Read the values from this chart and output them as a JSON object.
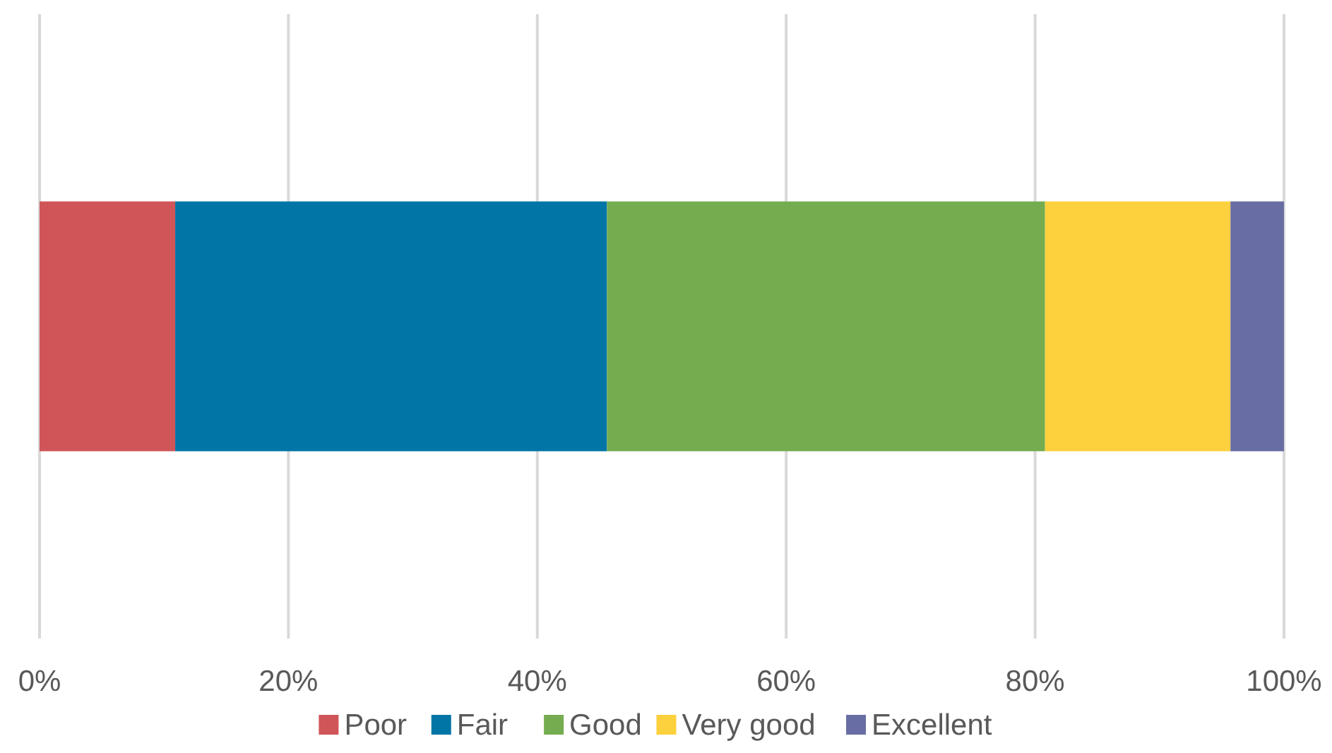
{
  "chart_data": {
    "type": "bar",
    "orientation": "horizontal",
    "stacked": true,
    "categories": [
      null
    ],
    "series": [
      {
        "name": "Poor",
        "color": "#cf5558",
        "values": [
          10.9
        ]
      },
      {
        "name": "Fair",
        "color": "#0075a6",
        "values": [
          34.7
        ]
      },
      {
        "name": "Good",
        "color": "#75ac50",
        "values": [
          35.2
        ]
      },
      {
        "name": "Very good",
        "color": "#fdd03d",
        "values": [
          14.9
        ]
      },
      {
        "name": "Excellent",
        "color": "#686ea3",
        "values": [
          4.3
        ]
      }
    ],
    "xlim": [
      0,
      100
    ],
    "xticks": [
      {
        "value": 0,
        "label": "0%"
      },
      {
        "value": 20,
        "label": "20%"
      },
      {
        "value": 40,
        "label": "40%"
      },
      {
        "value": 60,
        "label": "60%"
      },
      {
        "value": 80,
        "label": "80%"
      },
      {
        "value": 100,
        "label": "100%"
      }
    ],
    "grid": "x",
    "legend": "bottom",
    "tick_labels": "x"
  }
}
